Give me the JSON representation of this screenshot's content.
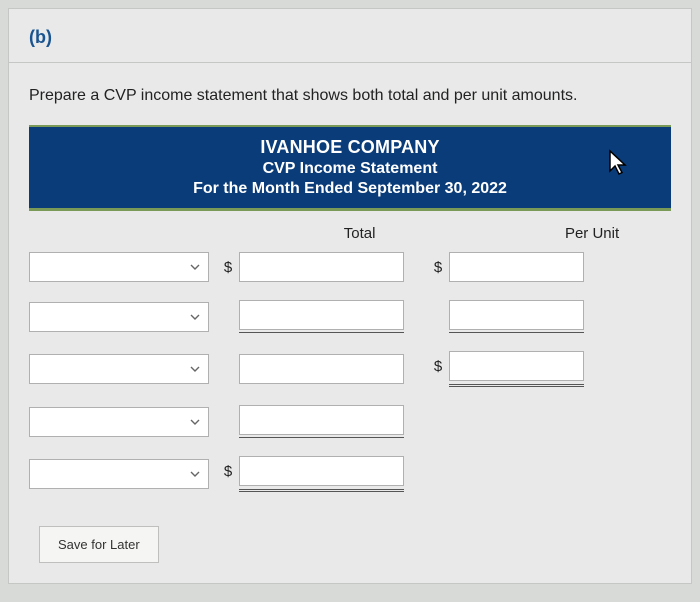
{
  "section": {
    "label": "(b)",
    "instruction": "Prepare a CVP income statement that shows both total and per unit amounts."
  },
  "statement": {
    "company": "IVANHOE COMPANY",
    "title": "CVP Income Statement",
    "period": "For the Month Ended September 30, 2022"
  },
  "columns": {
    "total": "Total",
    "per_unit": "Per Unit"
  },
  "currency_symbol": "$",
  "rows": [
    {
      "has_select": true,
      "total": {
        "dollar": true,
        "input": true,
        "underline": "none"
      },
      "perunit": {
        "dollar": true,
        "input": true,
        "underline": "none"
      }
    },
    {
      "has_select": true,
      "total": {
        "dollar": false,
        "input": true,
        "underline": "single"
      },
      "perunit": {
        "dollar": false,
        "input": true,
        "underline": "single"
      }
    },
    {
      "has_select": true,
      "total": {
        "dollar": false,
        "input": true,
        "underline": "none"
      },
      "perunit": {
        "dollar": true,
        "input": true,
        "underline": "double"
      }
    },
    {
      "has_select": true,
      "total": {
        "dollar": false,
        "input": true,
        "underline": "single"
      },
      "perunit": {
        "dollar": false,
        "input": false,
        "underline": "none"
      }
    },
    {
      "has_select": true,
      "total": {
        "dollar": true,
        "input": true,
        "underline": "double"
      },
      "perunit": {
        "dollar": false,
        "input": false,
        "underline": "none"
      }
    }
  ],
  "buttons": {
    "save": "Save for Later"
  },
  "colors": {
    "header_bg": "#0a3c7a",
    "header_border": "#7a9a58",
    "section_label": "#1a5490",
    "panel_bg": "#e8e9e8",
    "body_bg": "#d8dad8",
    "input_border": "#b0b0b0"
  }
}
